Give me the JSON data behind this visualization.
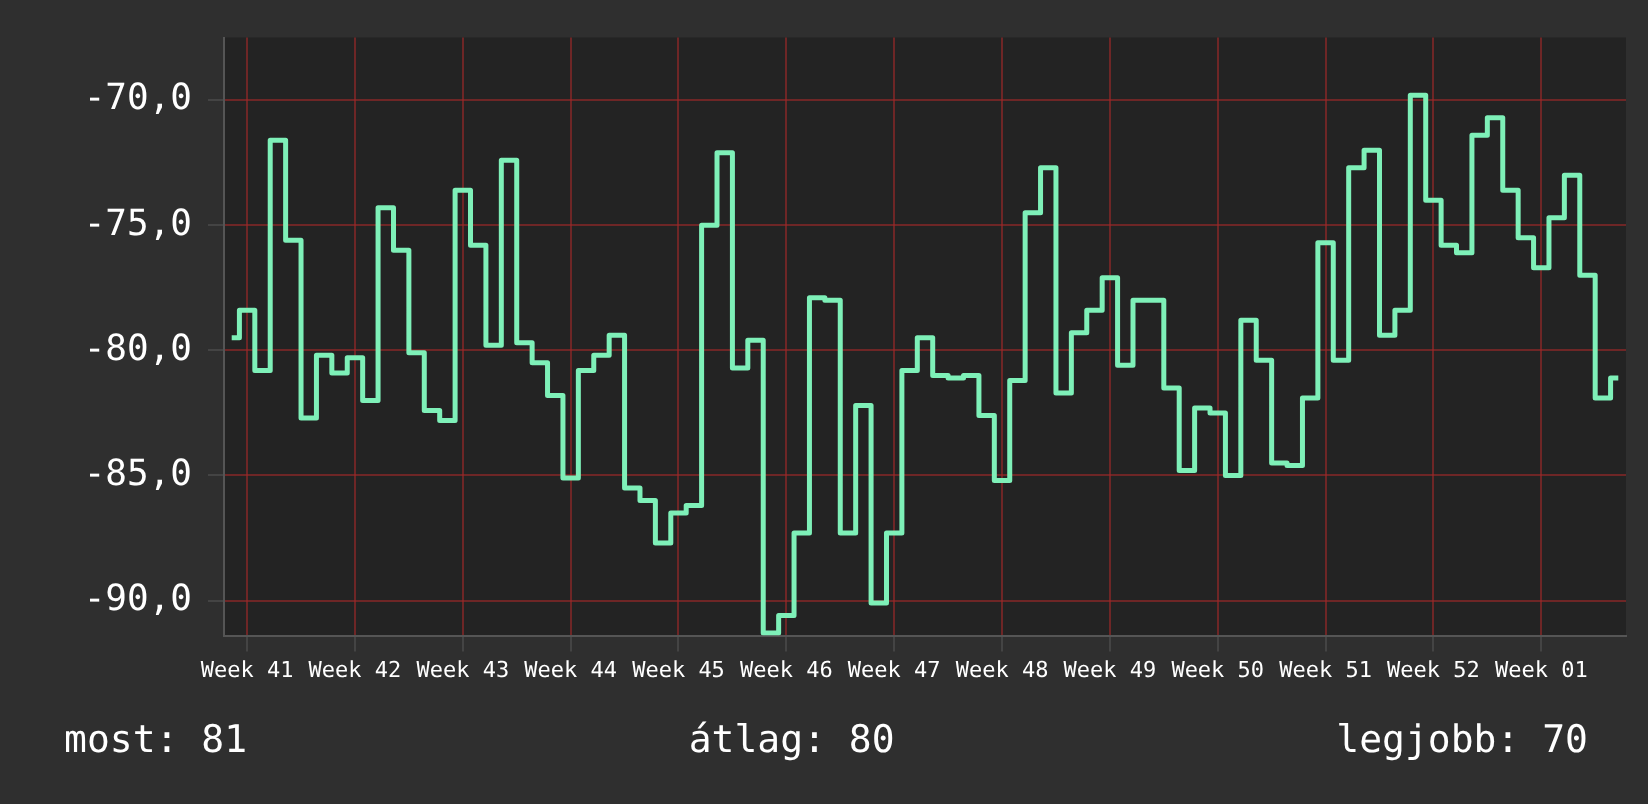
{
  "chart_data": {
    "type": "step",
    "categories": [
      null,
      "Week 41",
      null,
      null,
      null,
      null,
      null,
      null,
      "Week 42",
      null,
      null,
      null,
      null,
      null,
      null,
      "Week 43",
      null,
      null,
      null,
      null,
      null,
      null,
      "Week 44",
      null,
      null,
      null,
      null,
      null,
      null,
      "Week 45",
      null,
      null,
      null,
      null,
      null,
      null,
      "Week 46",
      null,
      null,
      null,
      null,
      null,
      null,
      "Week 47",
      null,
      null,
      null,
      null,
      null,
      null,
      "Week 48",
      null,
      null,
      null,
      null,
      null,
      null,
      "Week 49",
      null,
      null,
      null,
      null,
      null,
      null,
      "Week 50",
      null,
      null,
      null,
      null,
      null,
      null,
      "Week 51",
      null,
      null,
      null,
      null,
      null,
      null,
      "Week 52",
      null,
      null,
      null,
      null,
      null,
      null,
      "Week 01",
      null,
      null,
      null,
      null,
      null
    ],
    "series": [
      {
        "color": "#7ef0b8",
        "values": [
          -79.5,
          -78.4,
          -80.8,
          -71.6,
          -75.6,
          -82.7,
          -80.2,
          -80.9,
          -80.3,
          -82.0,
          -74.3,
          -76.0,
          -80.1,
          -82.4,
          -82.8,
          -73.6,
          -75.8,
          -79.8,
          -72.4,
          -79.7,
          -80.5,
          -81.8,
          -85.1,
          -80.8,
          -80.2,
          -79.4,
          -85.5,
          -86.0,
          -87.7,
          -86.5,
          -86.2,
          -75.0,
          -72.1,
          -80.7,
          -79.6,
          -91.3,
          -90.6,
          -87.3,
          -77.9,
          -78.0,
          -87.3,
          -82.2,
          -90.1,
          -87.3,
          -80.8,
          -79.5,
          -81.0,
          -81.1,
          -81.0,
          -82.6,
          -85.2,
          -81.2,
          -74.5,
          -72.7,
          -81.7,
          -79.3,
          -78.4,
          -77.1,
          -80.6,
          -78.0,
          -78.0,
          -81.5,
          -84.8,
          -82.3,
          -82.5,
          -85.0,
          -78.8,
          -80.4,
          -84.5,
          -84.6,
          -81.9,
          -75.7,
          -80.4,
          -72.7,
          -72.0,
          -79.4,
          -78.4,
          -69.8,
          -74.0,
          -75.8,
          -76.1,
          -71.4,
          -70.7,
          -73.6,
          -75.5,
          -76.7,
          -74.7,
          -73.0,
          -77.0,
          -81.9,
          -81.1
        ]
      }
    ],
    "ylim": [
      -91.4,
      -67.5
    ],
    "yticks": [
      {
        "value": -90,
        "label": "-90,0"
      },
      {
        "value": -85,
        "label": "-85,0"
      },
      {
        "value": -80,
        "label": "-80,0"
      },
      {
        "value": -75,
        "label": "-75,0"
      },
      {
        "value": -70,
        "label": "-70,0"
      }
    ],
    "grid": true,
    "legend": false,
    "annotations": [
      "most: 81",
      "átlag: 80",
      "legjobb: 70"
    ]
  }
}
